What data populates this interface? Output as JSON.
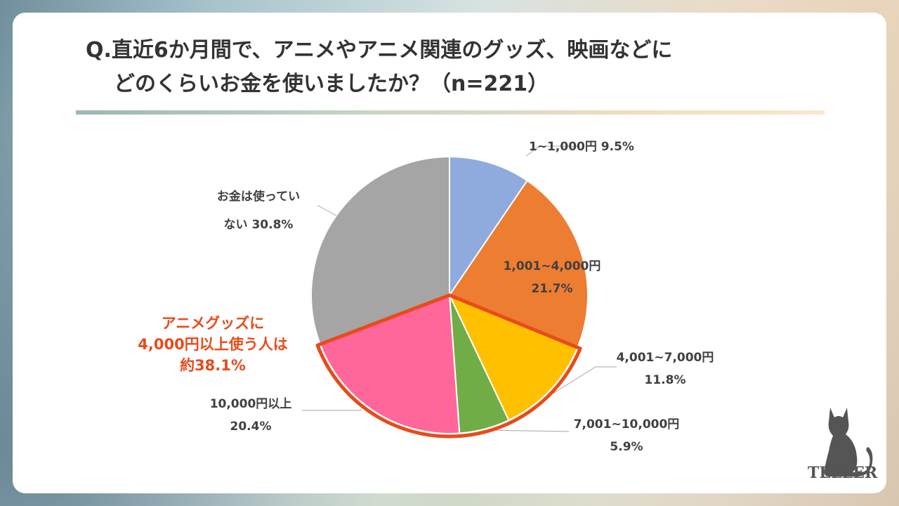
{
  "title": {
    "line1": "Q.直近6か月間で、アニメやアニメ関連のグッズ、映画などに",
    "line2": "どのくらいお金を使いましたか？（n=221）"
  },
  "chart_data": {
    "type": "pie",
    "slices": [
      {
        "name": "1~1,000円",
        "value": 9.5,
        "value_label": "9.5%",
        "color": "#8faadc"
      },
      {
        "name": "1,001~4,000円",
        "value": 21.7,
        "value_label": "21.7%",
        "color": "#ed7d31"
      },
      {
        "name": "4,001~7,000円",
        "value": 11.8,
        "value_label": "11.8%",
        "color": "#ffc000"
      },
      {
        "name": "7,001~10,000円",
        "value": 5.9,
        "value_label": "5.9%",
        "color": "#70ad47"
      },
      {
        "name": "10,000円以上",
        "value": 20.4,
        "value_label": "20.4%",
        "color": "#ff6699"
      },
      {
        "name": "お金は使っていない",
        "name_lines": [
          "お金は使ってい",
          "ない"
        ],
        "value": 30.8,
        "value_label": "30.8%",
        "color": "#a5a5a5"
      }
    ],
    "start": "12 o'clock",
    "direction": "clockwise",
    "highlight": {
      "lines": [
        "アニメグッズに",
        "4,000円以上使う人は",
        "約38.1%"
      ],
      "color": "#e84b1b"
    }
  },
  "brand": {
    "logo_text": "TELLER",
    "logo_icon": "cat-silhouette-icon"
  }
}
